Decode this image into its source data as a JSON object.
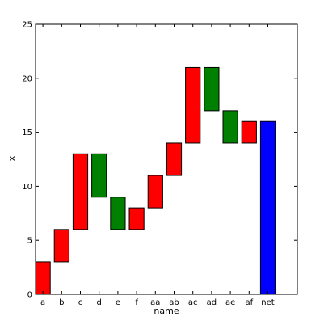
{
  "chart_data": {
    "type": "bar",
    "subtype": "waterfall",
    "categories": [
      "a",
      "b",
      "c",
      "d",
      "e",
      "f",
      "aa",
      "ab",
      "ac",
      "ad",
      "ae",
      "af",
      "net"
    ],
    "bars": [
      {
        "category": "a",
        "bottom": 0,
        "top": 3,
        "color": "#ff0000"
      },
      {
        "category": "b",
        "bottom": 3,
        "top": 6,
        "color": "#ff0000"
      },
      {
        "category": "c",
        "bottom": 6,
        "top": 13,
        "color": "#ff0000"
      },
      {
        "category": "d",
        "bottom": 9,
        "top": 13,
        "color": "#008000"
      },
      {
        "category": "e",
        "bottom": 6,
        "top": 9,
        "color": "#008000"
      },
      {
        "category": "f",
        "bottom": 6,
        "top": 8,
        "color": "#ff0000"
      },
      {
        "category": "aa",
        "bottom": 8,
        "top": 11,
        "color": "#ff0000"
      },
      {
        "category": "ab",
        "bottom": 11,
        "top": 14,
        "color": "#ff0000"
      },
      {
        "category": "ac",
        "bottom": 14,
        "top": 21,
        "color": "#ff0000"
      },
      {
        "category": "ad",
        "bottom": 17,
        "top": 21,
        "color": "#008000"
      },
      {
        "category": "ae",
        "bottom": 14,
        "top": 17,
        "color": "#008000"
      },
      {
        "category": "af",
        "bottom": 14,
        "top": 16,
        "color": "#ff0000"
      },
      {
        "category": "net",
        "bottom": 0,
        "top": 16,
        "color": "#0000ff"
      }
    ],
    "xlabel": "name",
    "ylabel": "x",
    "ylim": [
      0,
      25
    ],
    "yticks": [
      0,
      5,
      10,
      15,
      20,
      25
    ],
    "grid": false,
    "legend": "none"
  }
}
